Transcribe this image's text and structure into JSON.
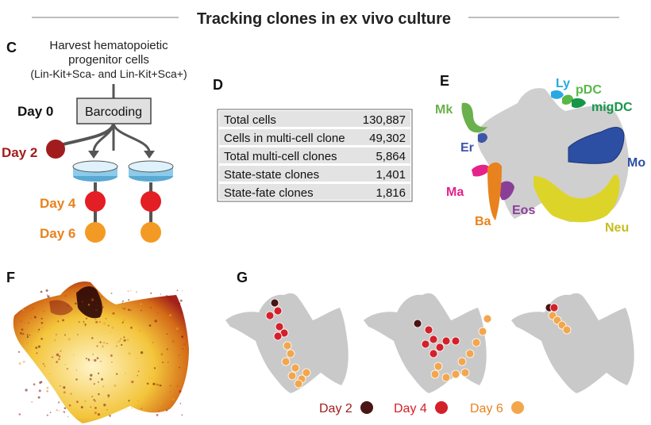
{
  "header": {
    "title": "Tracking clones in ex vivo culture"
  },
  "panel_c": {
    "letter": "C",
    "intro_line1": "Harvest hematopoietic",
    "intro_line2": "progenitor cells",
    "intro_line3": "(Lin-Kit+Sca- and Lin-Kit+Sca+)",
    "barcoding_label": "Barcoding",
    "days": [
      "Day 0",
      "Day 2",
      "Day 4",
      "Day 6"
    ],
    "colors": {
      "day2": "#a11d1d",
      "day4": "#e31e24",
      "day6": "#f39a24",
      "dish": "#7fc4e6"
    }
  },
  "panel_d": {
    "letter": "D",
    "rows": [
      {
        "label": "Total cells",
        "value": "130,887"
      },
      {
        "label": "Cells in multi-cell clone",
        "value": "49,302"
      },
      {
        "label": "Total multi-cell clones",
        "value": "5,864"
      },
      {
        "label": "State-state clones",
        "value": "1,401"
      },
      {
        "label": "State-fate clones",
        "value": "1,816"
      }
    ]
  },
  "panel_e": {
    "letter": "E",
    "labels": [
      {
        "text": "Ly",
        "color": "#29a9df"
      },
      {
        "text": "pDC",
        "color": "#57b846"
      },
      {
        "text": "migDC",
        "color": "#169648"
      },
      {
        "text": "Mk",
        "color": "#6ab04c"
      },
      {
        "text": "Er",
        "color": "#3c56a6"
      },
      {
        "text": "Mo",
        "color": "#2c4ea3"
      },
      {
        "text": "Ma",
        "color": "#e5228a"
      },
      {
        "text": "Eos",
        "color": "#8a3f97"
      },
      {
        "text": "Ba",
        "color": "#e8821e"
      },
      {
        "text": "Neu",
        "color": "#d6cd25"
      }
    ]
  },
  "panel_f": {
    "letter": "F"
  },
  "panel_g": {
    "letter": "G",
    "legend": [
      {
        "text": "Day 2",
        "color": "#4a1414"
      },
      {
        "text": "Day 4",
        "color": "#d3202a"
      },
      {
        "text": "Day 6",
        "color": "#f3a64c"
      }
    ]
  }
}
